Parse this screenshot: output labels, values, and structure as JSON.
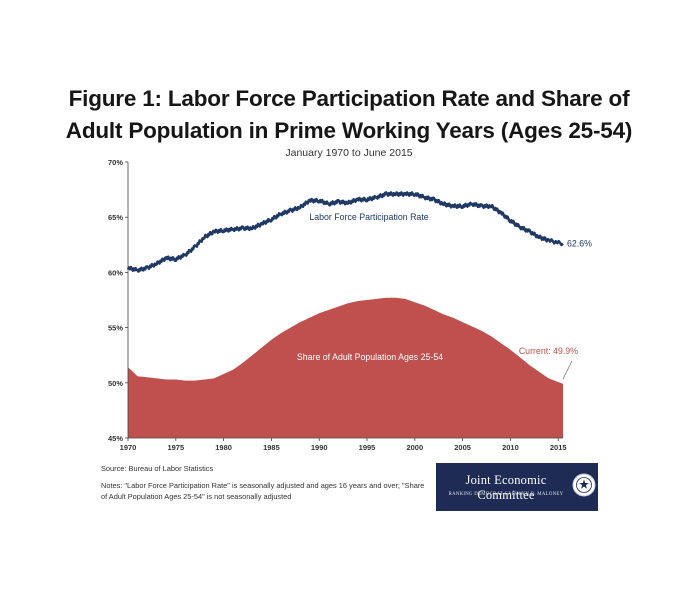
{
  "figure": {
    "title_line1": "Figure 1: Labor Force Participation Rate and Share of",
    "title_line2": "Adult Population in Prime Working Years (Ages 25-54)",
    "subtitle": "January 1970 to June 2015"
  },
  "footer": {
    "source": "Source: Bureau of Labor Statistics",
    "notes": "Notes: \"Labor Force Participation Rate\" is seasonally adjusted and ages 16 years and over; \"Share of Adult Population Ages 25-54\" is not seasonally adjusted"
  },
  "logo": {
    "title": "Joint Economic Committee",
    "subtitle": "RANKING DEMOCRAT CAROLYN B. MALONEY"
  },
  "chart_data": {
    "type": "line",
    "x_ticks": [
      "1970",
      "1975",
      "1980",
      "1985",
      "1990",
      "1995",
      "2000",
      "2005",
      "2010",
      "2015"
    ],
    "y_ticks": [
      "70%",
      "65%",
      "60%",
      "55%",
      "50%",
      "45%"
    ],
    "xlim": [
      1970,
      2015.5
    ],
    "ylim": [
      45,
      70
    ],
    "grid": false,
    "series": [
      {
        "name": "Labor Force Participation Rate",
        "style": "line",
        "color": "#1f3864",
        "end_label": "62.6%",
        "x": [
          1970,
          1971,
          1972,
          1973,
          1974,
          1975,
          1976,
          1977,
          1978,
          1979,
          1980,
          1981,
          1982,
          1983,
          1984,
          1985,
          1986,
          1987,
          1988,
          1989,
          1990,
          1991,
          1992,
          1993,
          1994,
          1995,
          1996,
          1997,
          1998,
          1999,
          2000,
          2001,
          2002,
          2003,
          2004,
          2005,
          2006,
          2007,
          2008,
          2009,
          2010,
          2011,
          2012,
          2013,
          2014,
          2015.5
        ],
        "values": [
          60.4,
          60.2,
          60.4,
          60.8,
          61.3,
          61.2,
          61.6,
          62.3,
          63.2,
          63.7,
          63.8,
          63.9,
          64.0,
          64.0,
          64.4,
          64.8,
          65.3,
          65.6,
          65.9,
          66.5,
          66.5,
          66.2,
          66.4,
          66.3,
          66.6,
          66.6,
          66.8,
          67.1,
          67.1,
          67.1,
          67.1,
          66.8,
          66.6,
          66.2,
          66.0,
          66.0,
          66.2,
          66.0,
          66.0,
          65.4,
          64.7,
          64.1,
          63.7,
          63.2,
          62.9,
          62.6
        ]
      },
      {
        "name": "Share of Adult Population Ages 25-54",
        "style": "area",
        "color": "#c0504d",
        "end_label": "Current: 49.9%",
        "x": [
          1970,
          1971,
          1972,
          1973,
          1974,
          1975,
          1976,
          1977,
          1978,
          1979,
          1980,
          1981,
          1982,
          1983,
          1984,
          1985,
          1986,
          1987,
          1988,
          1989,
          1990,
          1991,
          1992,
          1993,
          1994,
          1995,
          1996,
          1997,
          1998,
          1999,
          2000,
          2001,
          2002,
          2003,
          2004,
          2005,
          2006,
          2007,
          2008,
          2009,
          2010,
          2011,
          2012,
          2013,
          2014,
          2015.5
        ],
        "values": [
          51.4,
          50.6,
          50.5,
          50.4,
          50.3,
          50.3,
          50.2,
          50.2,
          50.3,
          50.4,
          50.8,
          51.2,
          51.8,
          52.5,
          53.2,
          53.9,
          54.5,
          55.0,
          55.5,
          55.9,
          56.3,
          56.6,
          56.9,
          57.2,
          57.4,
          57.5,
          57.6,
          57.7,
          57.7,
          57.6,
          57.3,
          57.0,
          56.6,
          56.2,
          55.9,
          55.5,
          55.1,
          54.7,
          54.2,
          53.6,
          53.0,
          52.3,
          51.6,
          51.0,
          50.4,
          49.9
        ]
      }
    ]
  }
}
